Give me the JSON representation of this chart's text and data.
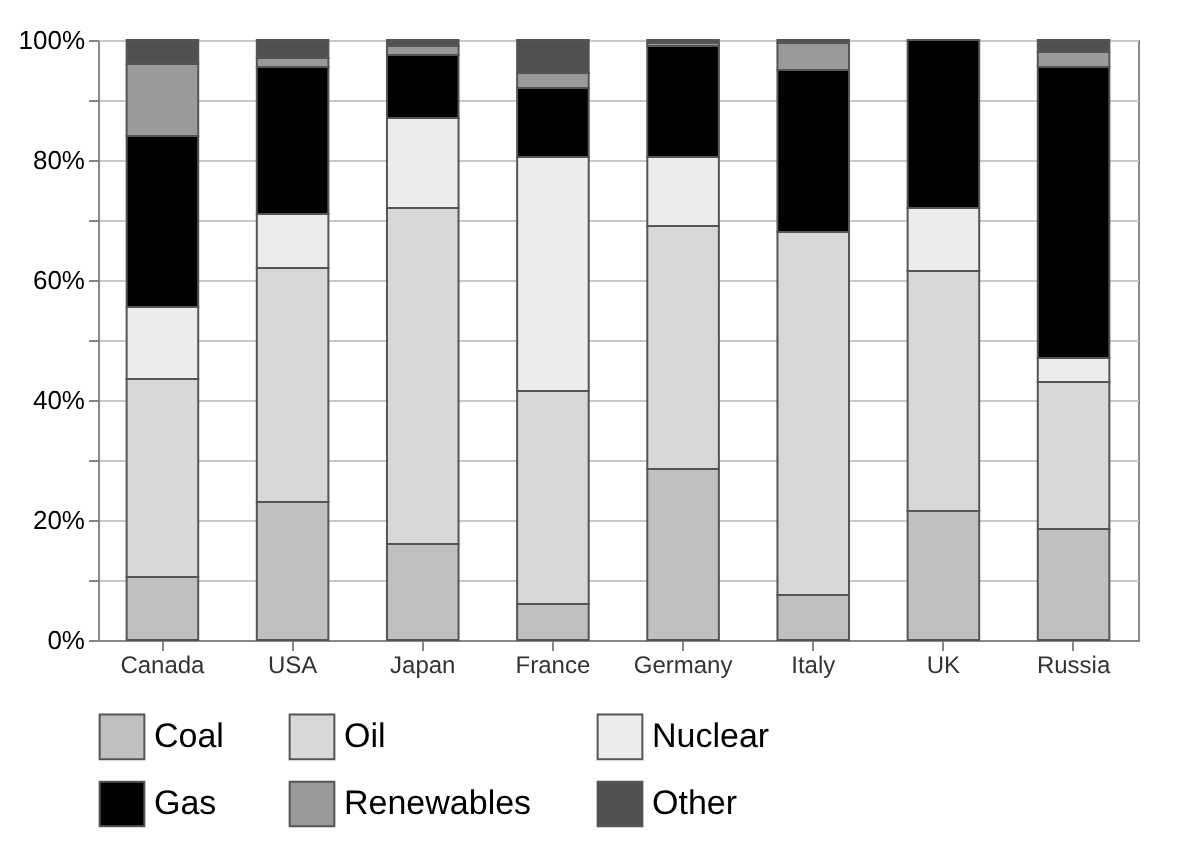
{
  "chart_data": {
    "type": "bar",
    "stacked": true,
    "categories": [
      "Canada",
      "USA",
      "Japan",
      "France",
      "Germany",
      "Italy",
      "UK",
      "Russia"
    ],
    "series": [
      {
        "name": "Coal",
        "color": "#c0c0c0",
        "values": [
          10.5,
          23,
          16,
          6,
          28.5,
          7.5,
          21.5,
          18.5
        ]
      },
      {
        "name": "Oil",
        "color": "#d8d8d8",
        "values": [
          33,
          39,
          56,
          35.5,
          40.5,
          60.5,
          40,
          24.5
        ]
      },
      {
        "name": "Nuclear",
        "color": "#ececec",
        "values": [
          12,
          9,
          15,
          39,
          11.5,
          0,
          10.5,
          4
        ]
      },
      {
        "name": "Gas",
        "color": "#000000",
        "values": [
          28.5,
          24.5,
          10.5,
          11.5,
          18.5,
          27,
          28,
          48.5
        ]
      },
      {
        "name": "Renewables",
        "color": "#9a9a9a",
        "values": [
          12,
          1.5,
          1.5,
          2.5,
          0.5,
          4.5,
          0,
          2.5
        ]
      },
      {
        "name": "Other",
        "color": "#505050",
        "values": [
          4,
          3,
          1,
          5.5,
          0.5,
          0.5,
          0,
          2
        ]
      }
    ],
    "ylim": [
      0,
      100
    ],
    "yticks": [
      {
        "value": 0,
        "label": "0%"
      },
      {
        "value": 10,
        "label": null
      },
      {
        "value": 20,
        "label": "20%"
      },
      {
        "value": 30,
        "label": null
      },
      {
        "value": 40,
        "label": "40%"
      },
      {
        "value": 50,
        "label": null
      },
      {
        "value": 60,
        "label": "60%"
      },
      {
        "value": 70,
        "label": null
      },
      {
        "value": 80,
        "label": "80%"
      },
      {
        "value": 90,
        "label": null
      },
      {
        "value": 100,
        "label": "100%"
      }
    ],
    "grid": true,
    "legend": "bottom"
  }
}
